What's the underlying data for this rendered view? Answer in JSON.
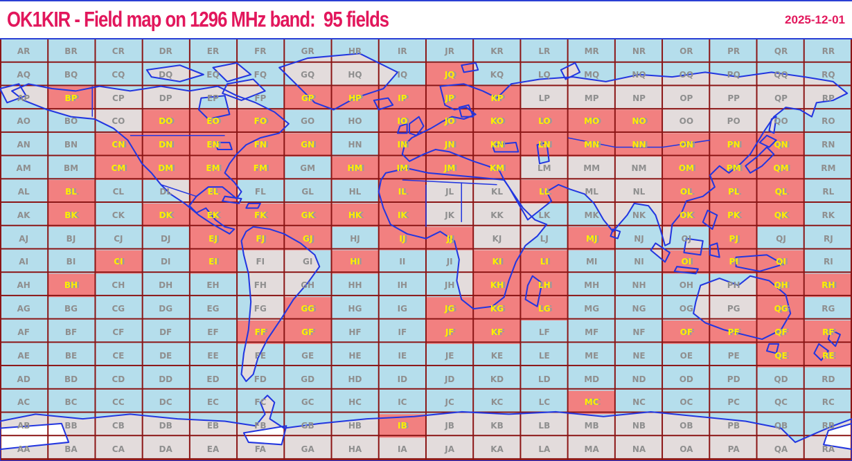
{
  "header": {
    "title": "OK1KIR - Field map on 1296 MHz band:  95 fields",
    "date": "2025-12-01",
    "band": "1296 MHz",
    "callsign": "OK1KIR",
    "field_count": 95
  },
  "grid": {
    "columns": [
      "A",
      "B",
      "C",
      "D",
      "E",
      "F",
      "G",
      "H",
      "I",
      "J",
      "K",
      "L",
      "M",
      "N",
      "O",
      "P",
      "Q",
      "R"
    ],
    "rows_top_to_bottom": [
      "R",
      "Q",
      "P",
      "O",
      "N",
      "M",
      "L",
      "K",
      "J",
      "I",
      "H",
      "G",
      "F",
      "E",
      "D",
      "C",
      "B",
      "A"
    ],
    "field_count": 95,
    "worked_fields": [
      "JQ",
      "BP",
      "GP",
      "HP",
      "IP",
      "JP",
      "KP",
      "DO",
      "EO",
      "FO",
      "IO",
      "JO",
      "KO",
      "LO",
      "MO",
      "NO",
      "CN",
      "DN",
      "EN",
      "FN",
      "GN",
      "IN",
      "JN",
      "KN",
      "LN",
      "MN",
      "NN",
      "ON",
      "PN",
      "QN",
      "CM",
      "DM",
      "EM",
      "FM",
      "HM",
      "IM",
      "JM",
      "KM",
      "OM",
      "PM",
      "QM",
      "BL",
      "EL",
      "IL",
      "LL",
      "OL",
      "PL",
      "QL",
      "BK",
      "DK",
      "EK",
      "FK",
      "GK",
      "HK",
      "IK",
      "OK",
      "PK",
      "QK",
      "EJ",
      "FJ",
      "GJ",
      "IJ",
      "JJ",
      "MJ",
      "PJ",
      "CI",
      "EI",
      "HI",
      "KI",
      "LI",
      "OI",
      "PI",
      "QI",
      "BH",
      "KH",
      "LH",
      "QH",
      "RH",
      "GG",
      "JG",
      "KG",
      "LG",
      "QG",
      "FF",
      "GF",
      "JF",
      "KF",
      "OF",
      "PF",
      "QF",
      "RF",
      "QE",
      "RE",
      "MC",
      "IB"
    ]
  },
  "colors": {
    "title_text": "#e2175c",
    "water": "#b5deec",
    "land": "#e3dcdc",
    "worked_fill": "#f28080",
    "ice": "#ffffff",
    "map_line": "#2236e0",
    "grid_line": "#8b1414",
    "frame_line": "#2a3fd4",
    "label_text": "#8f8f8f",
    "worked_label_text": "#ffee00",
    "worked_label_shadow": "#9a9a9a"
  },
  "map": {
    "projection": "equirectangular, lon -180..180 -> x 0..360, lat 90..-90 -> y 0..180",
    "land_polygons": [
      "12,19 22,21 32,22 42,20 55,22 68,20 80,22 92,20 100,24 108,27 116,31 122,36 118,40 110,42 104,45 100,49 97,53 95,57 99,61 102,65 100,68 94,63 88,63 83,67 80,71 83,74 87,72 91,77 95,80 99,81 97,83 90,79 84,75 78,70 72,66 68,62 64,57 60,53 57,48 54,43 48,38 40,34 30,33 20,30 10,26 5,22",
      "0,21 8,19 11,24 3,27",
      "62,13 76,11 86,15 76,18 64,16",
      "90,12 100,10 106,15 96,18",
      "96,19 107,17 112,22 102,26 94,23",
      "130,8 152,6 168,14 162,21 150,25 141,30 133,27 124,18 118,12",
      "107,80 114,81 120,83 127,87 133,92 135,97 130,104 124,111 119,119 113,128 109,136 107,143 104,146 102,143 103,134 105,124 106,112 105,100 103,92 102,86 104,82",
      "163,57 172,55 181,57 192,58 203,59 213,60 217,66 221,72 226,77 231,79 227,84 222,88 218,95 215,103 213,110 208,114 200,115 195,111 193,103 194,94 192,86 186,82 180,85 172,83 165,79 162,72 160,65 161,60",
      "186,20 196,19 204,22 210,25 216,19 228,17 242,16 256,18 270,15 284,16 298,14 312,16 326,14 340,16 352,18 358,23 352,26 345,27 343,33 338,30 332,29 327,33 323,39 320,44 317,49 313,53 308,57 304,54 300,58 302,63 297,67 290,69 288,74 284,79 283,87 281,88 279,81 277,75 274,71 268,70 265,75 259,82 255,77 251,70 247,66 241,64 236,62 231,65 233,69 228,73 223,77 219,70 215,63 213,60 211,56 206,54 200,52 195,50 190,48 184,47 179,49 173,52 170,49 171,45 174,42 178,40 182,38 187,35 191,33 196,34 201,32 197,29 192,30 188,28",
      "173,36 177,33 179,37 176,41 173,40",
      "169,37 172,36 172,40 168,40",
      "158,26 164,25 166,28 160,30",
      "195,11 201,10 202,13 196,14",
      "237,13 243,10 245,14 239,17",
      "324,46 327,49 322,54 317,57 315,54 320,50",
      "324,41 328,43 325,46 321,44",
      "326,34 328,33 327,40 325,39",
      "299,73 303,75 301,81 297,78",
      "290,85 297,86 296,92 289,91",
      "277,87 283,91 281,95 275,90",
      "286,97 295,98 294,100 285,99",
      "300,88 303,87 304,93 300,92",
      "311,93 324,92 331,96 321,99 311,97",
      "294,112 296,105 304,102 312,105 317,101 325,103 332,109 334,117 330,124 322,128 314,126 306,124 298,121 293,117",
      "325,130 329,130 328,134 324,133",
      "351,124 355,126 353,131 350,128",
      "346,130 350,133 347,137 344,134",
      "225,101 229,104 227,114 222,111 223,105",
      "259,81 262,82 261,85 258,84",
      "95,67 102,68 101,70 94,69",
      "105,70 110,70 109,72 104,72",
      "0,163 15,160 35,162 55,160 75,162 95,163 108,165 112,160 110,155 113,152 116,155 114,162 120,166 135,164 155,162 175,161 195,159 215,160 235,159 255,161 275,159 295,161 315,163 330,166 336,172 345,168 352,165 360,162 360,180 0,180"
    ],
    "lake_polygons": [
      "208,45 218,44 219,48 209,48",
      "227,45 231,44 232,52 228,53",
      "194,29 198,28 200,33 195,33",
      "91,44 97,44 98,47 92,47",
      "85,25 95,24 97,32 88,34 84,30"
    ],
    "ice_polygons": [
      "0,166 26,164 29,172 0,175",
      "350,167 360,164 360,175 348,173",
      "103,168 121,165 119,173 105,172"
    ],
    "border_polylines": [
      "39,20 39,33",
      "55,41 95,41",
      "68,62 83,67",
      "170,60 210,62",
      "180,62 180,80",
      "195,61 195,78",
      "240,42 260,46 280,46 300,43"
    ]
  }
}
